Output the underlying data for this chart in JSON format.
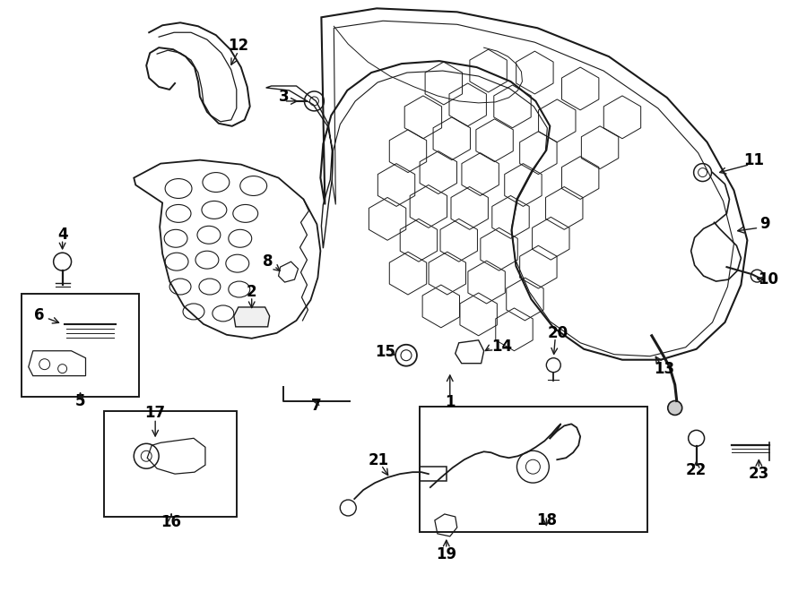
{
  "bg_color": "#ffffff",
  "line_color": "#1a1a1a",
  "text_color": "#000000",
  "label_fontsize": 12,
  "fig_width": 9.0,
  "fig_height": 6.61,
  "dpi": 100,
  "xlim": [
    0,
    900
  ],
  "ylim": [
    0,
    661
  ]
}
